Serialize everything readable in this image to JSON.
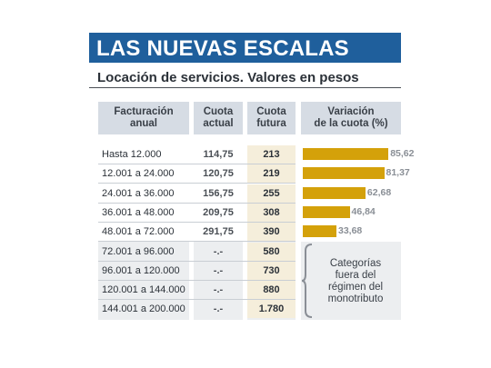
{
  "title": "LAS NUEVAS ESCALAS",
  "subtitle": "Locación de servicios. Valores en pesos",
  "headers": {
    "facturacion": [
      "Facturación",
      "anual"
    ],
    "actual": [
      "Cuota",
      "actual"
    ],
    "futura": [
      "Cuota",
      "futura"
    ],
    "variacion": [
      "Variación",
      "de la cuota (%)"
    ]
  },
  "rows": [
    {
      "range": "Hasta 12.000",
      "actual": "114,75",
      "futura": "213"
    },
    {
      "range": "12.001 a 24.000",
      "actual": "120,75",
      "futura": "219"
    },
    {
      "range": "24.001 a 36.000",
      "actual": "156,75",
      "futura": "255"
    },
    {
      "range": "36.001 a 48.000",
      "actual": "209,75",
      "futura": "308"
    },
    {
      "range": "48.001 a 72.000",
      "actual": "291,75",
      "futura": "390"
    },
    {
      "range": "72.001 a 96.000",
      "actual": "-.-",
      "futura": "580"
    },
    {
      "range": "96.001 a 120.000",
      "actual": "-.-",
      "futura": "730"
    },
    {
      "range": "120.001 a 144.000",
      "actual": "-.-",
      "futura": "880"
    },
    {
      "range": "144.001 a 200.000",
      "actual": "-.-",
      "futura": "1.780"
    }
  ],
  "note": [
    "Categorías",
    "fuera del",
    "régimen del",
    "monotributo"
  ],
  "chart_data": {
    "type": "bar",
    "orientation": "horizontal",
    "categories": [
      "Hasta 12.000",
      "12.001 a 24.000",
      "24.001 a 36.000",
      "36.001 a 48.000",
      "48.001 a 72.000"
    ],
    "values": [
      85.62,
      81.37,
      62.68,
      46.84,
      33.68
    ],
    "value_labels": [
      "85,62",
      "81,37",
      "62,68",
      "46,84",
      "33,68"
    ],
    "title": "Variación de la cuota (%)",
    "xlim": [
      0,
      100
    ],
    "bar_color": "#d4a10a"
  }
}
